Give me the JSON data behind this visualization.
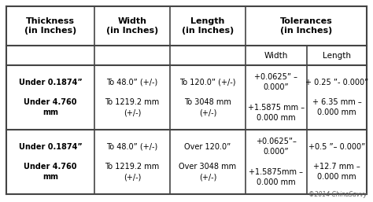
{
  "background_color": "#ffffff",
  "line_color": "#444444",
  "watermark": "©2014 ChinaSavvy",
  "font_size": 7.0,
  "header_font_size": 8.0,
  "sub_font_size": 7.5,
  "figw": 4.74,
  "figh": 2.57,
  "dpi": 100,
  "col_headers": [
    "Thickness\n(in Inches)",
    "Width\n(in Inches)",
    "Length\n(in Inches)",
    "Tolerances\n(in Inches)"
  ],
  "sub_headers": [
    "",
    "",
    "",
    "Width",
    "Length"
  ],
  "row1": [
    "Under 0.1874”\n\nUnder 4.760\nmm",
    "To 48.0” (+/-)\n\nTo 1219.2 mm\n(+/-)",
    "To 120.0” (+/-)\n\nTo 3048 mm\n(+/-)",
    "+0.0625” –\n0.000”\n\n+1.5875 mm –\n0.000 mm",
    "+ 0.25 ”- 0.000”\n\n+ 6.35 mm –\n0.000 mm"
  ],
  "row2": [
    "Under 0.1874”\n\nUnder 4.760\nmm",
    "To 48.0” (+/-)\n\nTo 1219.2 mm\n(+/-)",
    "Over 120.0”\n\nOver 3048 mm\n(+/-)",
    "+0.0625”–\n0.000”\n\n+1.5875mm –\n0.000 mm",
    "+0.5 ”– 0.000”\n\n+12.7 mm –\n0.000 mm"
  ]
}
